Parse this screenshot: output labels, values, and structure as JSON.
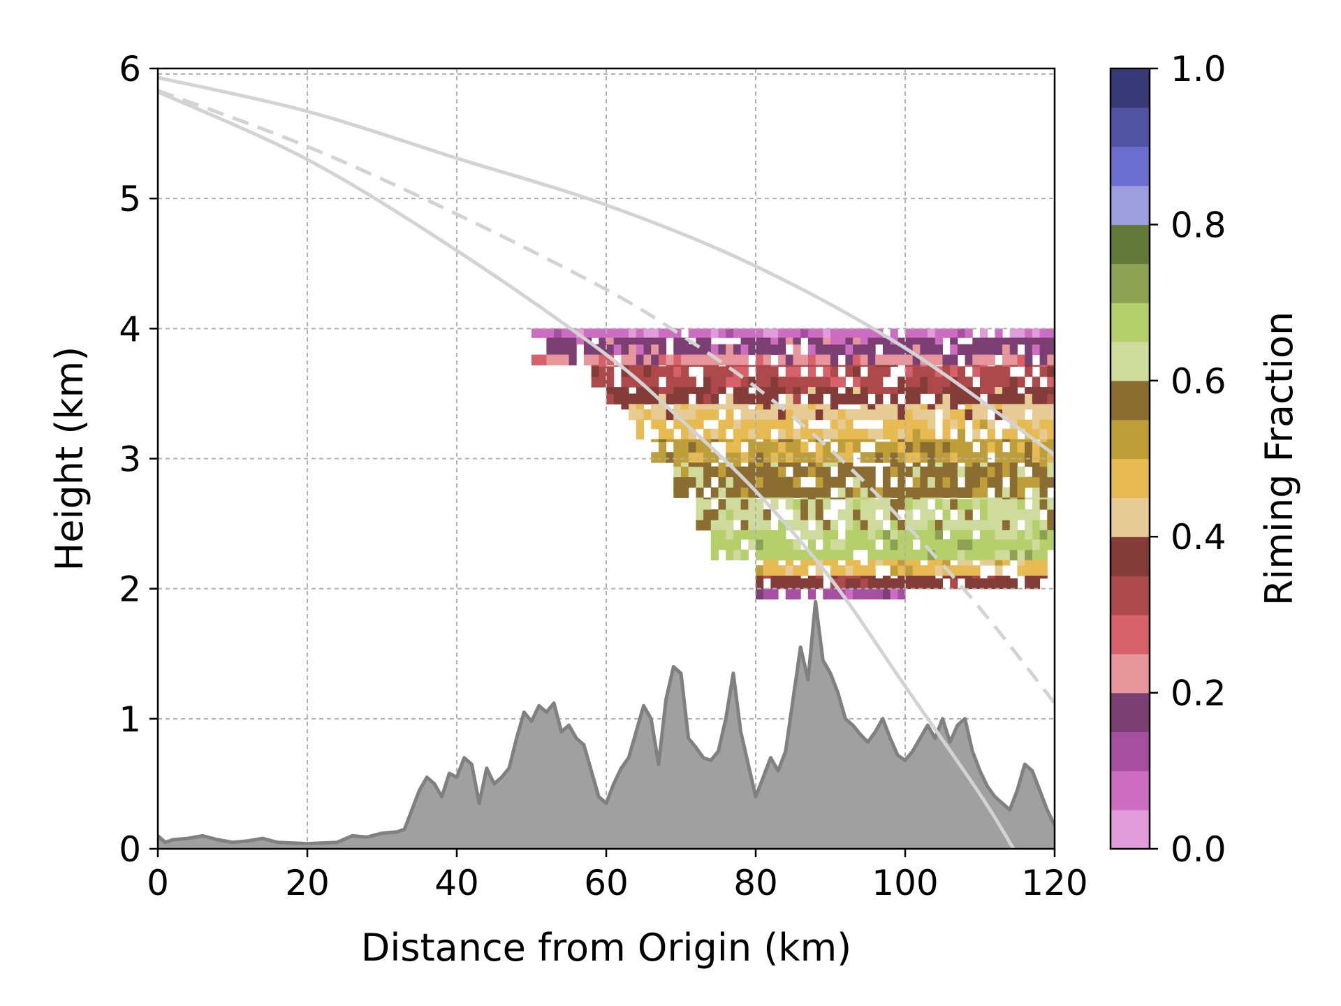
{
  "chart_data": {
    "type": "heatmap",
    "title": "",
    "xlabel": "Distance from Origin (km)",
    "ylabel": "Height (km)",
    "xlim": [
      0,
      120
    ],
    "ylim": [
      0,
      6
    ],
    "x_ticks": [
      "0",
      "20",
      "40",
      "60",
      "80",
      "100",
      "120"
    ],
    "y_ticks": [
      "0",
      "1",
      "2",
      "3",
      "4",
      "5",
      "6"
    ],
    "grid": true,
    "grid_style": "dashed",
    "colorbar": {
      "label": "Riming Fraction",
      "range": [
        0,
        1
      ],
      "ticks": [
        "0.0",
        "0.2",
        "0.4",
        "0.6",
        "0.8",
        "1.0"
      ],
      "colors": [
        "#e19cd9",
        "#cc6dc1",
        "#a64e9f",
        "#7b3f73",
        "#e7969c",
        "#d6616b",
        "#ad494a",
        "#843c39",
        "#e7cb94",
        "#e7ba52",
        "#bd9e39",
        "#8c6d31",
        "#cedb9c",
        "#b5cf6b",
        "#8ca252",
        "#637939",
        "#9c9ede",
        "#6b6ecf",
        "#5254a3",
        "#393b79"
      ]
    },
    "riming_layers": [
      {
        "height_range_km": [
          3.93,
          4.0
        ],
        "x_range_km": [
          50,
          120
        ],
        "riming": 0.05
      },
      {
        "height_range_km": [
          3.8,
          3.93
        ],
        "x_range_km": [
          52,
          120
        ],
        "riming": 0.15
      },
      {
        "height_range_km": [
          3.72,
          3.8
        ],
        "x_range_km": [
          50,
          120
        ],
        "riming": 0.22
      },
      {
        "height_range_km": [
          3.55,
          3.72
        ],
        "x_range_km": [
          58,
          120
        ],
        "riming": 0.3
      },
      {
        "height_range_km": [
          3.42,
          3.55
        ],
        "x_range_km": [
          60,
          120
        ],
        "riming": 0.36
      },
      {
        "height_range_km": [
          3.3,
          3.42
        ],
        "x_range_km": [
          62,
          120
        ],
        "riming": 0.42
      },
      {
        "height_range_km": [
          3.15,
          3.3
        ],
        "x_range_km": [
          64,
          120
        ],
        "riming": 0.47
      },
      {
        "height_range_km": [
          2.97,
          3.15
        ],
        "x_range_km": [
          66,
          120
        ],
        "riming": 0.52
      },
      {
        "height_range_km": [
          2.7,
          2.97
        ],
        "x_range_km": [
          69,
          120
        ],
        "riming": 0.57
      },
      {
        "height_range_km": [
          2.45,
          2.7
        ],
        "x_range_km": [
          72,
          120
        ],
        "riming": 0.62
      },
      {
        "height_range_km": [
          2.22,
          2.45
        ],
        "x_range_km": [
          74,
          120
        ],
        "riming": 0.67
      },
      {
        "height_range_km": [
          2.1,
          2.22
        ],
        "x_range_km": [
          80,
          119
        ],
        "riming": 0.45
      },
      {
        "height_range_km": [
          2.0,
          2.1
        ],
        "x_range_km": [
          80,
          119
        ],
        "riming": 0.35
      },
      {
        "height_range_km": [
          1.92,
          2.0
        ],
        "x_range_km": [
          78,
          100
        ],
        "riming": 0.1
      }
    ],
    "series": [
      {
        "name": "",
        "kind": "ray-upper",
        "style": "solid",
        "color": "#d3d3d3",
        "x": [
          0,
          20,
          40,
          60,
          80,
          100,
          120
        ],
        "y": [
          5.93,
          5.67,
          5.31,
          4.95,
          4.48,
          3.85,
          3.03
        ]
      },
      {
        "name": "",
        "kind": "ray-center",
        "style": "dashed",
        "color": "#d3d3d3",
        "x": [
          0,
          20,
          40,
          60,
          70,
          80,
          90,
          100,
          110,
          120
        ],
        "y": [
          5.83,
          5.4,
          4.88,
          4.3,
          3.95,
          3.55,
          3.07,
          2.5,
          1.85,
          1.12
        ]
      },
      {
        "name": "",
        "kind": "ray-lower",
        "style": "solid",
        "color": "#d3d3d3",
        "x": [
          0,
          20,
          40,
          60,
          70,
          80,
          90,
          100,
          110,
          114.5
        ],
        "y": [
          5.82,
          5.3,
          4.6,
          3.8,
          3.3,
          2.75,
          2.08,
          1.25,
          0.42,
          0.0
        ]
      }
    ],
    "terrain": {
      "fill_color": "#a0a0a0",
      "line_color": "#808080",
      "x": [
        0,
        1,
        2,
        4,
        6,
        8,
        10,
        12,
        14,
        16,
        20,
        24,
        26,
        28,
        30,
        32,
        33,
        34,
        35,
        36,
        37,
        38,
        39,
        40,
        41,
        42,
        43,
        44,
        45,
        46,
        47,
        48,
        49,
        50,
        51,
        52,
        53,
        54,
        55,
        56,
        57,
        58,
        59,
        60,
        61,
        62,
        63,
        64,
        65,
        66,
        67,
        68,
        69,
        70,
        71,
        72,
        73,
        74,
        75,
        76,
        77,
        78,
        79,
        80,
        81,
        82,
        83,
        84,
        85,
        86,
        87,
        88,
        89,
        90,
        91,
        92,
        93,
        94,
        95,
        96,
        97,
        98,
        99,
        100,
        101,
        102,
        103,
        104,
        105,
        106,
        107,
        108,
        109,
        110,
        111,
        112,
        113,
        114,
        115,
        116,
        117,
        118,
        119,
        120
      ],
      "y": [
        0.1,
        0.05,
        0.07,
        0.08,
        0.1,
        0.07,
        0.05,
        0.06,
        0.08,
        0.05,
        0.04,
        0.05,
        0.1,
        0.09,
        0.12,
        0.13,
        0.15,
        0.3,
        0.45,
        0.55,
        0.5,
        0.4,
        0.58,
        0.55,
        0.7,
        0.65,
        0.35,
        0.62,
        0.5,
        0.55,
        0.62,
        0.85,
        1.05,
        0.98,
        1.1,
        1.05,
        1.12,
        0.9,
        0.95,
        0.85,
        0.8,
        0.6,
        0.4,
        0.35,
        0.5,
        0.62,
        0.7,
        0.9,
        1.1,
        1.0,
        0.65,
        1.15,
        1.4,
        1.35,
        0.85,
        0.78,
        0.7,
        0.68,
        0.75,
        1.0,
        1.35,
        0.9,
        0.65,
        0.4,
        0.55,
        0.7,
        0.6,
        0.75,
        1.15,
        1.55,
        1.3,
        1.9,
        1.45,
        1.35,
        1.2,
        1.0,
        0.95,
        0.88,
        0.82,
        0.9,
        1.0,
        0.85,
        0.72,
        0.68,
        0.75,
        0.85,
        0.95,
        0.85,
        1.0,
        0.82,
        0.95,
        1.0,
        0.75,
        0.6,
        0.48,
        0.4,
        0.35,
        0.3,
        0.45,
        0.65,
        0.6,
        0.45,
        0.3,
        0.18
      ]
    }
  }
}
